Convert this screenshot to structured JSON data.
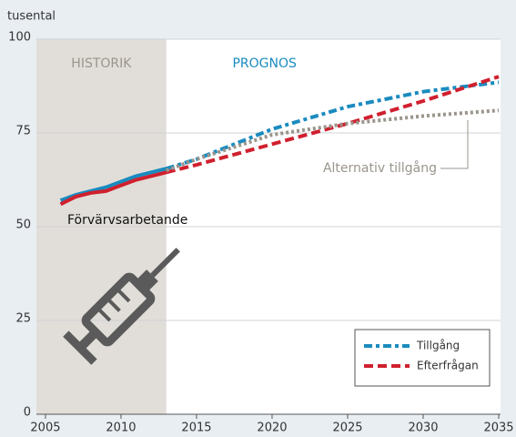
{
  "chart_data": {
    "type": "line",
    "y_label": "tusental",
    "x": [
      2006,
      2007,
      2008,
      2009,
      2010,
      2011,
      2012,
      2013,
      2015,
      2020,
      2025,
      2030,
      2035
    ],
    "series": [
      {
        "name": "Tillgång",
        "color": "#1a8bbf",
        "dash": "9 4 4 4",
        "in_legend": true,
        "values": [
          57,
          58.5,
          59.5,
          60.5,
          62,
          63.5,
          64.5,
          65.5,
          68,
          76,
          82,
          86,
          88.5
        ]
      },
      {
        "name": "Efterfrågan",
        "color": "#d0202e",
        "dash": "10 5",
        "in_legend": true,
        "values": [
          56,
          58,
          59,
          59.5,
          61,
          62.5,
          63.5,
          64.5,
          66.5,
          72,
          77.5,
          83.5,
          90
        ]
      },
      {
        "name": "Alternativ tillgång",
        "color": "#9a958c",
        "dash": "3 3",
        "in_legend": false,
        "values": [
          null,
          null,
          null,
          null,
          null,
          null,
          null,
          65,
          68,
          74.5,
          77.5,
          79.5,
          81
        ]
      }
    ],
    "historic_end": 2013,
    "historic_label": "HISTORIK",
    "forecast_label": "PROGNOS",
    "history_annotation": "Förvärvsarbetande",
    "xlim": [
      2004.4,
      2035
    ],
    "xticks": [
      2005,
      2010,
      2015,
      2020,
      2025,
      2030,
      2035
    ],
    "ylim": [
      0,
      100
    ],
    "yticks": [
      0,
      25,
      50,
      75,
      100
    ],
    "grid": true,
    "legend": "lower right"
  }
}
